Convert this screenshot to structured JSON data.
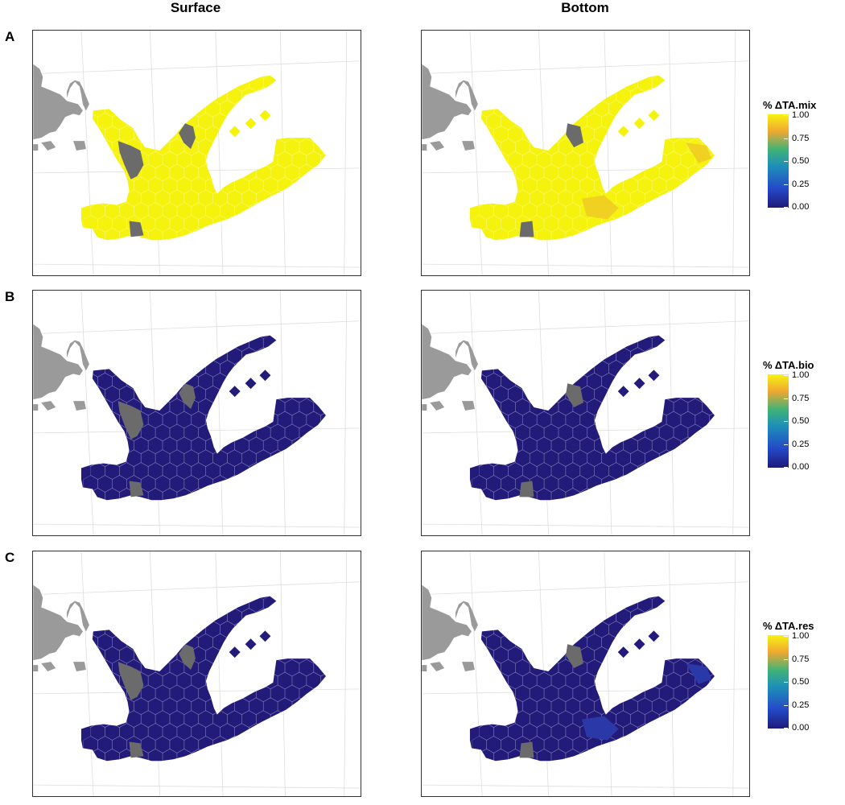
{
  "columns": [
    "Surface",
    "Bottom"
  ],
  "rows": [
    "A",
    "B",
    "C"
  ],
  "legends": [
    {
      "title": "% ΔTA.mix",
      "ticks": [
        "1.00",
        "0.75",
        "0.50",
        "0.25",
        "0.00"
      ]
    },
    {
      "title": "% ΔTA.bio",
      "ticks": [
        "1.00",
        "0.75",
        "0.50",
        "0.25",
        "0.00"
      ]
    },
    {
      "title": "% ΔTA.res",
      "ticks": [
        "1.00",
        "0.75",
        "0.50",
        "0.25",
        "0.00"
      ]
    }
  ],
  "colors": {
    "mix": "#f5f30e",
    "mix_bottom_patch": "#f0d020",
    "bio": "#231b7a",
    "res": "#231b7a",
    "res_bottom_patch": "#2a38a8",
    "na": "#6b6b6b",
    "land": "#9a9a9a",
    "grid": "#dedede"
  },
  "chart_data": [
    {
      "type": "heatmap",
      "panel": "A",
      "column": "Surface",
      "variable": "% ΔTA.mix",
      "color_range": [
        0,
        1
      ],
      "approx_value": 1.0,
      "missing_cells": 3
    },
    {
      "type": "heatmap",
      "panel": "A",
      "column": "Bottom",
      "variable": "% ΔTA.mix",
      "color_range": [
        0,
        1
      ],
      "approx_value": 0.98,
      "missing_cells": 2
    },
    {
      "type": "heatmap",
      "panel": "B",
      "column": "Surface",
      "variable": "% ΔTA.bio",
      "color_range": [
        0,
        1
      ],
      "approx_value": 0.0,
      "missing_cells": 3
    },
    {
      "type": "heatmap",
      "panel": "B",
      "column": "Bottom",
      "variable": "% ΔTA.bio",
      "color_range": [
        0,
        1
      ],
      "approx_value": 0.0,
      "missing_cells": 2
    },
    {
      "type": "heatmap",
      "panel": "C",
      "column": "Surface",
      "variable": "% ΔTA.res",
      "color_range": [
        0,
        1
      ],
      "approx_value": 0.0,
      "missing_cells": 3
    },
    {
      "type": "heatmap",
      "panel": "C",
      "column": "Bottom",
      "variable": "% ΔTA.res",
      "color_range": [
        0,
        1
      ],
      "approx_value": 0.02,
      "missing_cells": 2
    }
  ]
}
